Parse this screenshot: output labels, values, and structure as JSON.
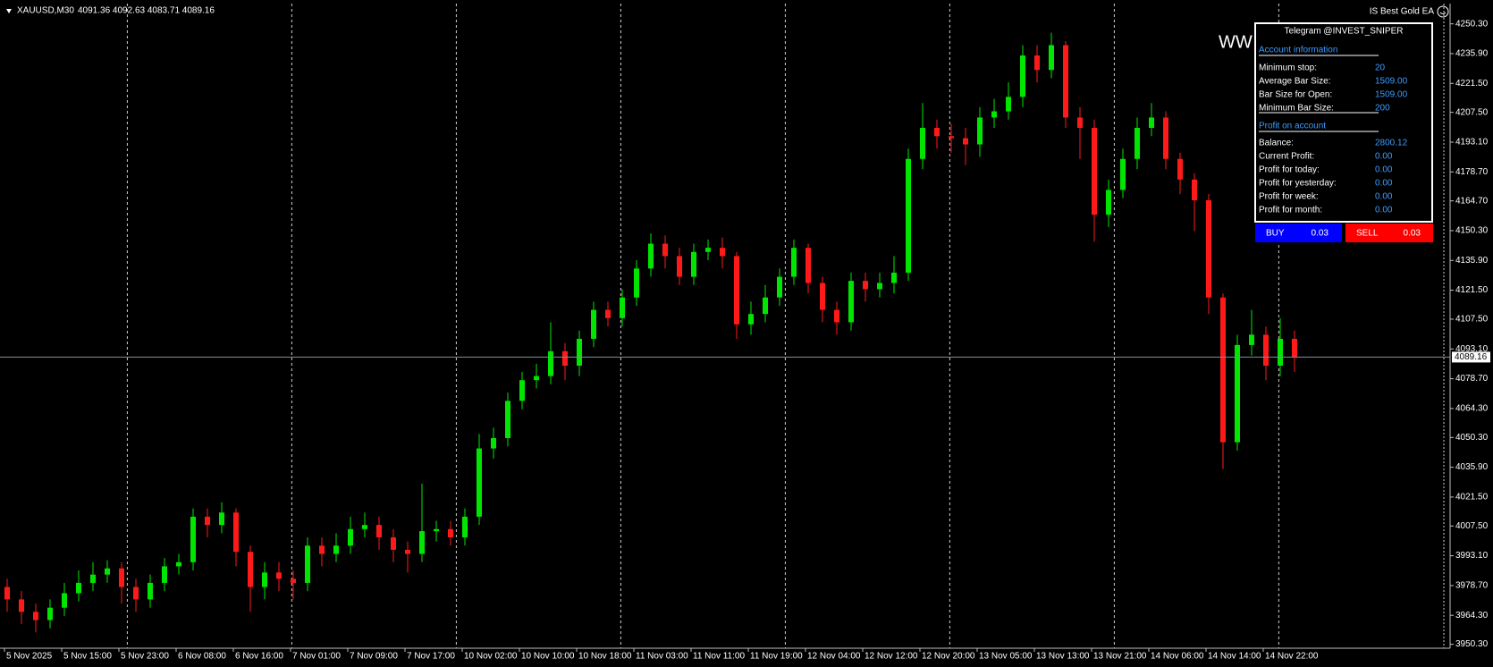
{
  "header": {
    "symbol": "XAUUSD,M30",
    "ohlc": "4091.36 4092.63 4083.71 4089.16",
    "ea": "IS Best Gold EA",
    "watermark": "WW"
  },
  "panel": {
    "title": "Telegram @INVEST_SNIPER",
    "section1": "Account information",
    "rows1": [
      [
        "Minimum stop:",
        "20"
      ],
      [
        "Average Bar Size:",
        "1509.00"
      ],
      [
        "Bar Size for Open:",
        "1509.00"
      ],
      [
        "Minimum Bar Size:",
        "200"
      ]
    ],
    "section2": "Profit on account",
    "rows2": [
      [
        "Balance:",
        "2800.12"
      ],
      [
        "Current Profit:",
        "0.00"
      ],
      [
        "Profit for today:",
        "0.00"
      ],
      [
        "Profit for yesterday:",
        "0.00"
      ],
      [
        "Profit for week:",
        "0.00"
      ],
      [
        "Profit for month:",
        "0.00"
      ]
    ],
    "buy": {
      "label": "BUY",
      "lot": "0.03"
    },
    "sell": {
      "label": "SELL",
      "lot": "0.03"
    }
  },
  "chart_data": {
    "type": "candlestick",
    "up_color": "#00e600",
    "down_color": "#ff1a1a",
    "current_price": 4089.16,
    "categories": [
      "5 Nov 2025",
      null,
      null,
      null,
      "5 Nov 15:00",
      null,
      null,
      null,
      "5 Nov 23:00",
      null,
      null,
      null,
      "6 Nov 08:00",
      null,
      null,
      null,
      "6 Nov 16:00",
      null,
      null,
      null,
      "7 Nov 01:00",
      null,
      null,
      null,
      "7 Nov 09:00",
      null,
      null,
      null,
      "7 Nov 17:00",
      null,
      null,
      null,
      "10 Nov 02:00",
      null,
      null,
      null,
      "10 Nov 10:00",
      null,
      null,
      null,
      "10 Nov 18:00",
      null,
      null,
      null,
      "11 Nov 03:00",
      null,
      null,
      null,
      "11 Nov 11:00",
      null,
      null,
      null,
      "11 Nov 19:00",
      null,
      null,
      null,
      "12 Nov 04:00",
      null,
      null,
      null,
      "12 Nov 12:00",
      null,
      null,
      null,
      "12 Nov 20:00",
      null,
      null,
      null,
      "13 Nov 05:00",
      null,
      null,
      null,
      "13 Nov 13:00",
      null,
      null,
      null,
      "13 Nov 21:00",
      null,
      null,
      null,
      "14 Nov 06:00",
      null,
      null,
      null,
      "14 Nov 14:00",
      null,
      null,
      null,
      "14 Nov 22:00",
      null,
      null
    ],
    "open": [
      3978,
      3972,
      3966,
      3962,
      3968,
      3975,
      3980,
      3984,
      3987,
      3978,
      3972,
      3980,
      3988,
      3990,
      4012,
      4008,
      4014,
      3995,
      3978,
      3985,
      3982,
      3980,
      3998,
      3994,
      3998,
      4006,
      4008,
      4002,
      3996,
      3994,
      4005,
      4006,
      4002,
      4012,
      4045,
      4050,
      4068,
      4078,
      4080,
      4092,
      4085,
      4098,
      4112,
      4108,
      4118,
      4132,
      4144,
      4138,
      4128,
      4140,
      4142,
      4138,
      4105,
      4110,
      4118,
      4128,
      4142,
      4125,
      4112,
      4106,
      4126,
      4122,
      4125,
      4130,
      4185,
      4200,
      4196,
      4195,
      4192,
      4205,
      4208,
      4215,
      4235,
      4228,
      4240,
      4205,
      4200,
      4158,
      4170,
      4185,
      4200,
      4205,
      4185,
      4175,
      4165,
      4118,
      4048,
      4095,
      4100,
      4085,
      4098
    ],
    "high": [
      3982,
      3976,
      3970,
      3972,
      3980,
      3986,
      3990,
      3991,
      3990,
      3982,
      3984,
      3992,
      3994,
      4016,
      4016,
      4019,
      4016,
      3998,
      3990,
      3990,
      3986,
      4002,
      4002,
      4004,
      4012,
      4014,
      4012,
      4006,
      4000,
      4028,
      4010,
      4010,
      4016,
      4052,
      4055,
      4072,
      4082,
      4086,
      4106,
      4096,
      4102,
      4116,
      4116,
      4122,
      4136,
      4149,
      4148,
      4142,
      4144,
      4146,
      4147,
      4140,
      4116,
      4124,
      4132,
      4146,
      4144,
      4128,
      4116,
      4130,
      4130,
      4130,
      4138,
      4190,
      4212,
      4204,
      4202,
      4200,
      4210,
      4214,
      4222,
      4240,
      4240,
      4246,
      4242,
      4210,
      4204,
      4175,
      4190,
      4205,
      4212,
      4208,
      4188,
      4178,
      4168,
      4120,
      4100,
      4112,
      4104,
      4108,
      4102
    ],
    "low": [
      3966,
      3960,
      3956,
      3958,
      3964,
      3971,
      3976,
      3980,
      3970,
      3966,
      3968,
      3976,
      3984,
      3986,
      4002,
      4004,
      3988,
      3966,
      3972,
      3976,
      3972,
      3976,
      3988,
      3990,
      3994,
      4002,
      3996,
      3990,
      3985,
      3990,
      4000,
      3998,
      3998,
      4008,
      4040,
      4046,
      4064,
      4074,
      4076,
      4078,
      4080,
      4094,
      4104,
      4104,
      4114,
      4128,
      4132,
      4124,
      4124,
      4136,
      4132,
      4098,
      4100,
      4106,
      4114,
      4124,
      4120,
      4106,
      4100,
      4102,
      4116,
      4118,
      4120,
      4126,
      4180,
      4190,
      4188,
      4182,
      4186,
      4200,
      4204,
      4210,
      4222,
      4224,
      4200,
      4185,
      4145,
      4152,
      4166,
      4180,
      4196,
      4180,
      4168,
      4150,
      4110,
      4035,
      4044,
      4090,
      4078,
      4080,
      4082
    ],
    "close": [
      3972,
      3966,
      3962,
      3968,
      3975,
      3980,
      3984,
      3987,
      3978,
      3972,
      3980,
      3988,
      3990,
      4012,
      4008,
      4014,
      3995,
      3978,
      3985,
      3982,
      3980,
      3998,
      3994,
      3998,
      4006,
      4008,
      4002,
      3996,
      3994,
      4005,
      4006,
      4002,
      4012,
      4045,
      4050,
      4068,
      4078,
      4080,
      4092,
      4085,
      4098,
      4112,
      4108,
      4118,
      4132,
      4144,
      4138,
      4128,
      4140,
      4142,
      4138,
      4105,
      4110,
      4118,
      4128,
      4142,
      4125,
      4112,
      4106,
      4126,
      4122,
      4125,
      4130,
      4185,
      4200,
      4196,
      4195,
      4192,
      4205,
      4208,
      4215,
      4235,
      4228,
      4240,
      4205,
      4200,
      4158,
      4170,
      4185,
      4200,
      4205,
      4185,
      4175,
      4165,
      4118,
      4048,
      4095,
      4100,
      4085,
      4098,
      4089.16
    ],
    "ylim": [
      3948.4,
      4258.8
    ],
    "yticks": [
      {
        "value": 4250.3,
        "label": "4250.30"
      },
      {
        "value": 4235.9,
        "label": "4235.90"
      },
      {
        "value": 4221.5,
        "label": "4221.50"
      },
      {
        "value": 4207.5,
        "label": "4207.50"
      },
      {
        "value": 4193.1,
        "label": "4193.10"
      },
      {
        "value": 4178.7,
        "label": "4178.70"
      },
      {
        "value": 4164.7,
        "label": "4164.70"
      },
      {
        "value": 4150.3,
        "label": "4150.30"
      },
      {
        "value": 4135.9,
        "label": "4135.90"
      },
      {
        "value": 4121.5,
        "label": "4121.50"
      },
      {
        "value": 4107.5,
        "label": "4107.50"
      },
      {
        "value": 4093.1,
        "label": "4093.10"
      },
      {
        "value": 4078.7,
        "label": "4078.70"
      },
      {
        "value": 4064.3,
        "label": "4064.30"
      },
      {
        "value": 4050.3,
        "label": "4050.30"
      },
      {
        "value": 4035.9,
        "label": "4035.90"
      },
      {
        "value": 4021.5,
        "label": "4021.50"
      },
      {
        "value": 4007.5,
        "label": "4007.50"
      },
      {
        "value": 3993.1,
        "label": "3993.10"
      },
      {
        "value": 3978.7,
        "label": "3978.70"
      },
      {
        "value": 3964.3,
        "label": "3964.30"
      },
      {
        "value": 3950.3,
        "label": "3950.30"
      }
    ]
  }
}
